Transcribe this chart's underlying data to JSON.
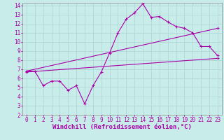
{
  "xlabel": "Windchill (Refroidissement éolien,°C)",
  "background_color": "#c8ecea",
  "grid_color": "#b0d8d8",
  "line_color": "#aa00aa",
  "xlim": [
    -0.5,
    23.5
  ],
  "ylim": [
    2,
    14.3
  ],
  "xticks": [
    0,
    1,
    2,
    3,
    4,
    5,
    6,
    7,
    8,
    9,
    10,
    11,
    12,
    13,
    14,
    15,
    16,
    17,
    18,
    19,
    20,
    21,
    22,
    23
  ],
  "yticks": [
    2,
    3,
    4,
    5,
    6,
    7,
    8,
    9,
    10,
    11,
    12,
    13,
    14
  ],
  "line1_x": [
    0,
    1,
    2,
    3,
    4,
    5,
    6,
    7,
    8,
    9,
    10,
    11,
    12,
    13,
    14,
    15,
    16,
    17,
    18,
    19,
    20,
    21,
    22,
    23
  ],
  "line1_y": [
    6.8,
    6.8,
    5.2,
    5.7,
    5.7,
    4.7,
    5.2,
    3.2,
    5.2,
    6.7,
    8.8,
    11.0,
    12.5,
    13.2,
    14.2,
    12.7,
    12.8,
    12.2,
    11.7,
    11.5,
    11.0,
    9.5,
    9.5,
    8.5
  ],
  "line2_x": [
    0,
    23
  ],
  "line2_y": [
    6.8,
    11.5
  ],
  "line3_x": [
    0,
    23
  ],
  "line3_y": [
    6.7,
    8.2
  ],
  "tick_fontsize": 5.5,
  "xlabel_fontsize": 6.5
}
